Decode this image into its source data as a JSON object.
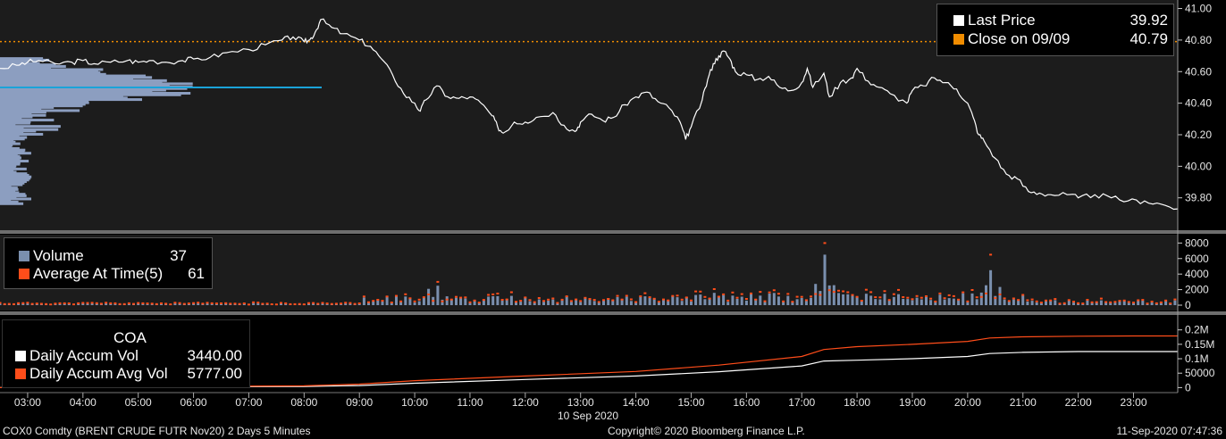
{
  "footer": {
    "left": "COX0 Comdty (BRENT CRUDE FUTR  Nov20) 2 Days 5 Minutes",
    "center": "Copyright© 2020 Bloomberg Finance L.P.",
    "right": "11-Sep-2020 07:47:36"
  },
  "x_date_label": "10 Sep 2020",
  "colors": {
    "background": "#000000",
    "panel_bg": "#1c1c1c",
    "price_line": "#ffffff",
    "close_line": "#f08c00",
    "volume_bar": "#7a8fae",
    "avg_at_time": "#ff4d1a",
    "accum_vol": "#ffffff",
    "accum_avg": "#ff4d1a",
    "profile": "#8c9ec0",
    "profile_marker": "#1aa3d9"
  },
  "chart_data": [
    {
      "type": "line",
      "panel": "price",
      "x_ticks": [
        "03:00",
        "04:00",
        "05:00",
        "06:00",
        "07:00",
        "08:00",
        "09:00",
        "10:00",
        "11:00",
        "12:00",
        "13:00",
        "14:00",
        "15:00",
        "16:00",
        "17:00",
        "18:00",
        "19:00",
        "20:00",
        "21:00",
        "22:00",
        "23:00"
      ],
      "y_ticks": [
        "41.00",
        "40.80",
        "40.60",
        "40.40",
        "40.20",
        "40.00",
        "39.80"
      ],
      "ylim": [
        39.64,
        41.02
      ],
      "xlim": [
        2.5,
        23.8
      ],
      "legend": {
        "items": [
          {
            "label": "Last Price",
            "value": "39.92",
            "color": "#ffffff"
          },
          {
            "label": "Close on 09/09",
            "value": "40.79",
            "color": "#f08c00"
          }
        ]
      },
      "close_level": 40.79,
      "price_x": [
        2.5,
        2.8,
        3.0,
        3.2,
        3.5,
        3.8,
        4.0,
        4.2,
        4.5,
        4.8,
        5.0,
        5.2,
        5.5,
        5.8,
        6.0,
        6.3,
        6.6,
        7.0,
        7.3,
        7.6,
        7.8,
        8.0,
        8.1,
        8.2,
        8.3,
        8.5,
        8.7,
        9.0,
        9.2,
        9.4,
        9.6,
        9.8,
        10.0,
        10.1,
        10.2,
        10.4,
        10.6,
        10.8,
        11.0,
        11.2,
        11.4,
        11.5,
        11.6,
        11.8,
        12.0,
        12.2,
        12.5,
        12.7,
        12.9,
        13.0,
        13.2,
        13.4,
        13.6,
        13.8,
        14.0,
        14.2,
        14.4,
        14.6,
        14.8,
        14.9,
        15.0,
        15.2,
        15.3,
        15.4,
        15.5,
        15.6,
        15.7,
        15.8,
        16.0,
        16.2,
        16.4,
        16.6,
        16.8,
        17.0,
        17.1,
        17.2,
        17.4,
        17.5,
        17.7,
        17.9,
        18.0,
        18.2,
        18.4,
        18.6,
        18.9,
        19.0,
        19.2,
        19.4,
        19.6,
        19.8,
        20.0,
        20.1,
        20.2,
        20.3,
        20.5,
        20.7,
        20.9,
        21.1,
        21.3,
        21.5,
        21.8,
        22.0,
        22.3,
        22.6,
        22.9,
        23.2,
        23.5,
        23.8
      ],
      "price_y": [
        40.62,
        40.64,
        40.66,
        40.67,
        40.65,
        40.66,
        40.67,
        40.65,
        40.66,
        40.67,
        40.66,
        40.67,
        40.66,
        40.67,
        40.68,
        40.69,
        40.72,
        40.74,
        40.77,
        40.8,
        40.82,
        40.79,
        40.8,
        40.85,
        40.93,
        40.88,
        40.84,
        40.8,
        40.76,
        40.68,
        40.58,
        40.46,
        40.4,
        40.35,
        40.42,
        40.51,
        40.44,
        40.43,
        40.44,
        40.4,
        40.32,
        40.25,
        40.21,
        40.28,
        40.28,
        40.31,
        40.34,
        40.26,
        40.22,
        40.28,
        40.33,
        40.29,
        40.31,
        40.39,
        40.44,
        40.47,
        40.41,
        40.37,
        40.28,
        40.17,
        40.25,
        40.42,
        40.55,
        40.65,
        40.7,
        40.73,
        40.68,
        40.6,
        40.58,
        40.55,
        40.57,
        40.5,
        40.48,
        40.53,
        40.62,
        40.5,
        40.59,
        40.44,
        40.53,
        40.56,
        40.62,
        40.54,
        40.5,
        40.46,
        40.4,
        40.48,
        40.51,
        40.56,
        40.53,
        40.49,
        40.4,
        40.31,
        40.2,
        40.16,
        40.05,
        39.95,
        39.92,
        39.84,
        39.83,
        39.82,
        39.82,
        39.8,
        39.82,
        39.8,
        39.78,
        39.78,
        39.76,
        39.73
      ]
    },
    {
      "type": "bar",
      "panel": "volume",
      "y_ticks": [
        "8000",
        "6000",
        "4000",
        "2000",
        "0"
      ],
      "ylim": [
        0,
        8500
      ],
      "legend": {
        "items": [
          {
            "label": "Volume",
            "value": "37",
            "color": "#7a8fae"
          },
          {
            "label": "Average At Time(5)",
            "value": "61",
            "color": "#ff4d1a"
          }
        ]
      },
      "spikes": [
        {
          "x": 10.4,
          "volume": 2500,
          "avg": 3000
        },
        {
          "x": 17.4,
          "volume": 6500,
          "avg": 8000
        },
        {
          "x": 20.4,
          "volume": 4500,
          "avg": 6500
        }
      ]
    },
    {
      "type": "line",
      "panel": "accumulation",
      "y_ticks": [
        "0.2M",
        "0.15M",
        "0.1M",
        "50000",
        "0"
      ],
      "ylim": [
        -5000,
        230000
      ],
      "legend": {
        "title": "COA",
        "items": [
          {
            "label": "Daily Accum Vol",
            "value": "3440.00",
            "color": "#ffffff"
          },
          {
            "label": "Daily Accum Avg Vol",
            "value": "5777.00",
            "color": "#ff4d1a"
          }
        ]
      },
      "series": [
        {
          "name": "Daily Accum Vol",
          "x": [
            2.5,
            5.0,
            8.0,
            9.0,
            10.0,
            12.0,
            14.0,
            15.5,
            17.0,
            17.4,
            18.0,
            19.0,
            20.0,
            20.4,
            21.0,
            22.0,
            23.0,
            23.8
          ],
          "y": [
            0,
            2000,
            4000,
            7000,
            15000,
            28000,
            40000,
            55000,
            75000,
            92000,
            95000,
            100000,
            108000,
            118000,
            122000,
            125000,
            125000,
            125000
          ]
        },
        {
          "name": "Daily Accum Avg Vol",
          "x": [
            2.5,
            5.0,
            8.0,
            9.0,
            10.0,
            12.0,
            14.0,
            15.5,
            17.0,
            17.4,
            18.0,
            19.0,
            20.0,
            20.4,
            21.0,
            22.0,
            23.0,
            23.8
          ],
          "y": [
            0,
            3000,
            6000,
            12000,
            24000,
            40000,
            56000,
            78000,
            108000,
            132000,
            142000,
            150000,
            160000,
            172000,
            176000,
            178000,
            179000,
            179000
          ]
        }
      ]
    }
  ]
}
